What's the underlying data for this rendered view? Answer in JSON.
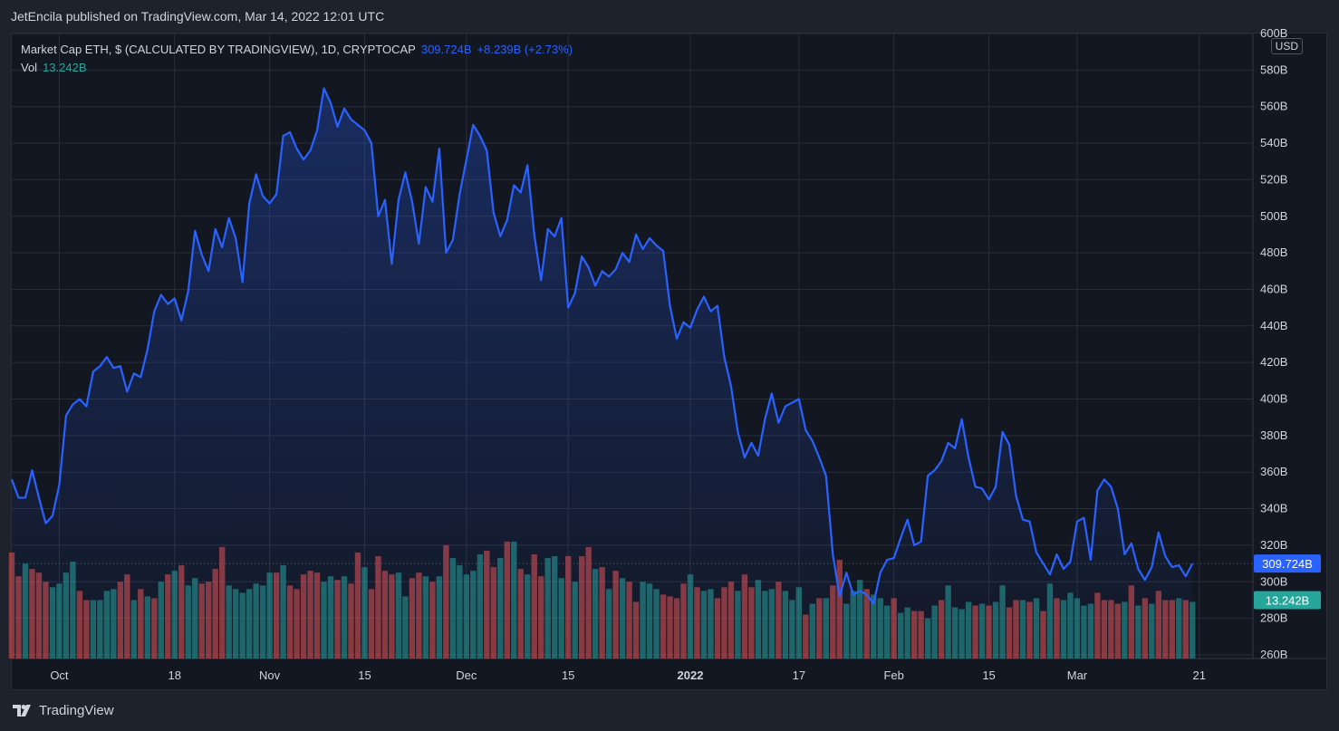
{
  "header": {
    "published_text": "JetEncila published on TradingView.com, Mar 14, 2022 12:01 UTC"
  },
  "legend": {
    "symbol": "Market Cap ETH, $ (CALCULATED BY TRADINGVIEW), 1D, CRYPTOCAP",
    "last": "309.724B",
    "change": "+8.239B (+2.73%)",
    "vol_label": "Vol",
    "vol_value": "13.242B"
  },
  "currency_label": "USD",
  "footer": {
    "brand": "TradingView"
  },
  "colors": {
    "line": "#2962ff",
    "up_volume": "#26a69a",
    "down_volume": "#ef5350",
    "grid": "#2a2e39",
    "background": "#131722"
  },
  "chart_data": {
    "type": "area",
    "price_unit": "B USD",
    "x_tick_labels": [
      "Oct",
      "18",
      "Nov",
      "15",
      "Dec",
      "15",
      "2022",
      "17",
      "Feb",
      "15",
      "Mar",
      "21"
    ],
    "y_tick_labels": [
      "600B",
      "580B",
      "560B",
      "540B",
      "520B",
      "500B",
      "480B",
      "460B",
      "440B",
      "420B",
      "400B",
      "380B",
      "360B",
      "340B",
      "320B",
      "300B",
      "280B",
      "260B"
    ],
    "ylim": [
      258,
      600
    ],
    "last_price_label": "309.724B",
    "last_volume_label": "13.242B",
    "price_series": {
      "name": "Market Cap ETH",
      "values": [
        356,
        346,
        346,
        361,
        346,
        332,
        336,
        353,
        391,
        397,
        400,
        396,
        415,
        418,
        423,
        417,
        418,
        404,
        414,
        412,
        427,
        448,
        457,
        452,
        455,
        443,
        459,
        492,
        479,
        470,
        493,
        483,
        499,
        488,
        464,
        507,
        523,
        511,
        507,
        512,
        544,
        546,
        537,
        531,
        536,
        547,
        570,
        562,
        549,
        559,
        553,
        550,
        547,
        540,
        500,
        509,
        474,
        509,
        524,
        508,
        485,
        516,
        508,
        537,
        480,
        487,
        512,
        531,
        550,
        544,
        536,
        502,
        489,
        498,
        517,
        513,
        528,
        490,
        465,
        493,
        489,
        499,
        450,
        458,
        478,
        472,
        462,
        470,
        467,
        471,
        480,
        475,
        490,
        482,
        488,
        484,
        481,
        451,
        433,
        442,
        439,
        449,
        456,
        448,
        451,
        423,
        407,
        382,
        368,
        376,
        369,
        389,
        403,
        387,
        396,
        398,
        400,
        383,
        377,
        368,
        358,
        315,
        292,
        305,
        293,
        295,
        293,
        288,
        305,
        312,
        313,
        324,
        334,
        320,
        322,
        358,
        361,
        366,
        376,
        373,
        389,
        368,
        352,
        351,
        345,
        352,
        382,
        375,
        347,
        334,
        333,
        316,
        310,
        304,
        315,
        307,
        311,
        333,
        335,
        312,
        350,
        356,
        352,
        340,
        315,
        321,
        307,
        301,
        308,
        327,
        314,
        308,
        309,
        303,
        310
      ]
    },
    "volume_series": {
      "name": "Vol",
      "values": [
        316,
        303,
        310,
        307,
        305,
        300,
        297,
        299,
        305,
        311,
        295,
        290,
        290,
        290,
        295,
        296,
        300,
        304,
        290,
        296,
        292,
        291,
        300,
        304,
        306,
        309,
        298,
        302,
        299,
        300,
        307,
        319,
        298,
        296,
        294,
        296,
        299,
        298,
        305,
        305,
        309,
        298,
        296,
        304,
        306,
        305,
        300,
        303,
        301,
        303,
        299,
        316,
        308,
        296,
        314,
        306,
        304,
        305,
        292,
        302,
        305,
        303,
        300,
        303,
        320,
        313,
        309,
        304,
        306,
        315,
        317,
        308,
        313,
        322,
        322,
        307,
        304,
        315,
        303,
        313,
        314,
        302,
        314,
        300,
        314,
        319,
        307,
        308,
        296,
        306,
        302,
        300,
        289,
        300,
        299,
        296,
        293,
        292,
        291,
        299,
        304,
        297,
        295,
        296,
        291,
        297,
        300,
        295,
        304,
        297,
        301,
        295,
        296,
        300,
        295,
        290,
        297,
        282,
        288,
        291,
        291,
        298,
        312,
        288,
        295,
        301,
        296,
        293,
        291,
        287,
        291,
        283,
        286,
        284,
        284,
        280,
        287,
        290,
        298,
        286,
        285,
        289,
        287,
        288,
        287,
        289,
        298,
        286,
        290,
        290,
        289,
        291,
        284,
        299,
        291,
        290,
        294,
        291,
        287,
        288,
        294,
        290,
        290,
        288,
        289,
        298,
        287,
        291,
        288,
        295,
        290,
        290,
        291,
        290,
        289
      ],
      "direction": [
        "down",
        "down",
        "up",
        "down",
        "down",
        "down",
        "up",
        "up",
        "up",
        "up",
        "down",
        "down",
        "up",
        "up",
        "up",
        "up",
        "down",
        "down",
        "up",
        "down",
        "up",
        "down",
        "up",
        "down",
        "up",
        "down",
        "up",
        "up",
        "down",
        "down",
        "down",
        "down",
        "up",
        "up",
        "up",
        "up",
        "up",
        "up",
        "up",
        "down",
        "up",
        "down",
        "down",
        "down",
        "down",
        "down",
        "up",
        "up",
        "down",
        "up",
        "down",
        "down",
        "up",
        "down",
        "down",
        "down",
        "down",
        "up",
        "up",
        "down",
        "down",
        "up",
        "down",
        "up",
        "down",
        "up",
        "up",
        "up",
        "up",
        "up",
        "down",
        "down",
        "up",
        "down",
        "up",
        "down",
        "up",
        "down",
        "down",
        "up",
        "up",
        "up",
        "down",
        "up",
        "down",
        "down",
        "up",
        "down",
        "up",
        "down",
        "up",
        "down",
        "down",
        "up",
        "up",
        "up",
        "down",
        "down",
        "down",
        "down",
        "up",
        "down",
        "up",
        "up",
        "down",
        "down",
        "down",
        "up",
        "down",
        "down",
        "up",
        "up",
        "up",
        "down",
        "up",
        "up",
        "up",
        "down",
        "up",
        "down",
        "up",
        "down",
        "down",
        "up",
        "up",
        "up",
        "down",
        "up",
        "up",
        "up",
        "down",
        "up",
        "up",
        "down",
        "down",
        "up",
        "up",
        "down",
        "up",
        "up",
        "up",
        "up",
        "down",
        "up",
        "down",
        "up",
        "up",
        "down",
        "down",
        "up",
        "down",
        "up",
        "down",
        "up",
        "down",
        "up",
        "up",
        "up",
        "up",
        "up",
        "down",
        "down",
        "down",
        "down",
        "up",
        "down",
        "up",
        "down",
        "up",
        "down",
        "down",
        "down",
        "up",
        "down",
        "up"
      ]
    },
    "grid": true,
    "legend_position": "top-left",
    "price_axis_position": "right"
  }
}
